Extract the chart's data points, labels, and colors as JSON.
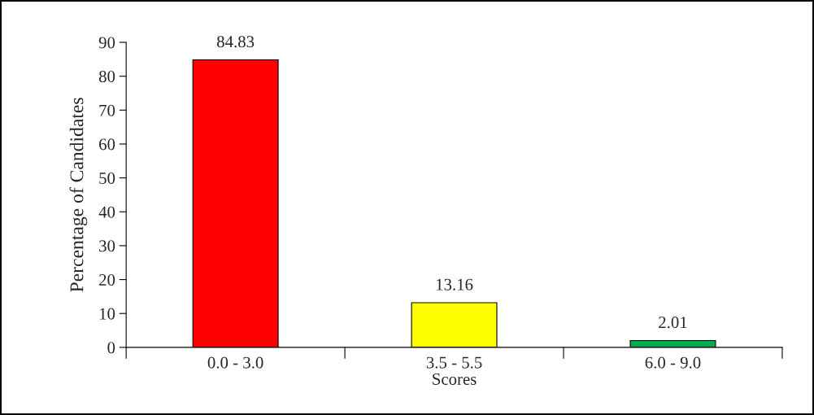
{
  "chart_data": {
    "type": "bar",
    "xlabel": "Scores",
    "ylabel": "Percentage of Candidates",
    "categories": [
      "0.0 - 3.0",
      "3.5 - 5.5",
      "6.0 - 9.0"
    ],
    "values": [
      84.83,
      13.16,
      2.01
    ],
    "colors": [
      "#ff0000",
      "#ffff00",
      "#00b050"
    ],
    "ylim": [
      0,
      90
    ],
    "yticks": [
      0,
      10,
      20,
      30,
      40,
      50,
      60,
      70,
      80,
      90
    ],
    "data_labels": true,
    "grid": false,
    "legend": false
  }
}
